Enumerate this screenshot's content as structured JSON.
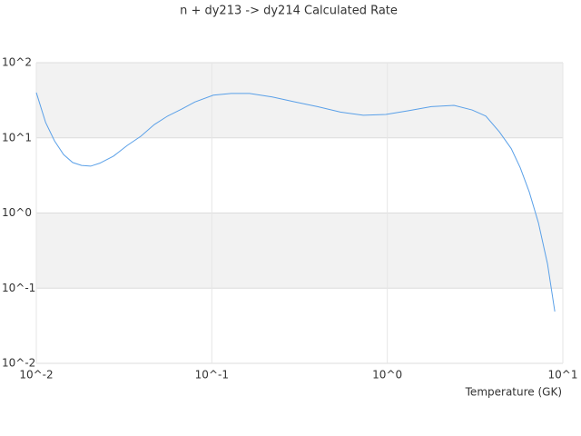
{
  "chart_data": {
    "type": "line",
    "title": "n + dy213 -> dy214 Calculated Rate",
    "x_label": "Temperature (GK)",
    "x_log": true,
    "y_log": true,
    "grid": true,
    "xlim": [
      0.01,
      10
    ],
    "ylim": [
      0.01,
      100
    ],
    "xticks": [
      {
        "value": 0.01,
        "label": "10^-2"
      },
      {
        "value": 0.1,
        "label": "10^-1"
      },
      {
        "value": 1,
        "label": "10^0"
      },
      {
        "value": 10,
        "label": "10^1"
      }
    ],
    "yticks": [
      {
        "value": 0.01,
        "label": "10^-2"
      },
      {
        "value": 0.1,
        "label": "10^-1"
      },
      {
        "value": 1,
        "label": "10^0"
      },
      {
        "value": 10,
        "label": "10^1"
      },
      {
        "value": 100,
        "label": "10^2"
      }
    ],
    "x": [
      0.01,
      0.0113,
      0.0127,
      0.0143,
      0.0161,
      0.0181,
      0.0204,
      0.023,
      0.0275,
      0.0329,
      0.0394,
      0.047,
      0.056,
      0.067,
      0.08,
      0.102,
      0.129,
      0.164,
      0.221,
      0.298,
      0.4,
      0.54,
      0.73,
      0.98,
      1.32,
      1.78,
      2.4,
      3.04,
      3.64,
      4.35,
      5.08,
      5.72,
      6.44,
      7.26,
      8.18,
      9.0
    ],
    "series": [
      {
        "color": "#5aa0e8",
        "values": [
          40,
          16,
          9.1,
          6.0,
          4.7,
          4.3,
          4.2,
          4.6,
          5.7,
          7.9,
          10.5,
          15,
          19.5,
          24,
          30,
          37,
          39,
          39,
          35,
          30,
          26,
          22,
          20,
          20.5,
          23,
          26,
          27,
          23.5,
          19.5,
          12,
          7.2,
          4.0,
          1.9,
          0.74,
          0.21,
          0.049
        ]
      }
    ]
  }
}
